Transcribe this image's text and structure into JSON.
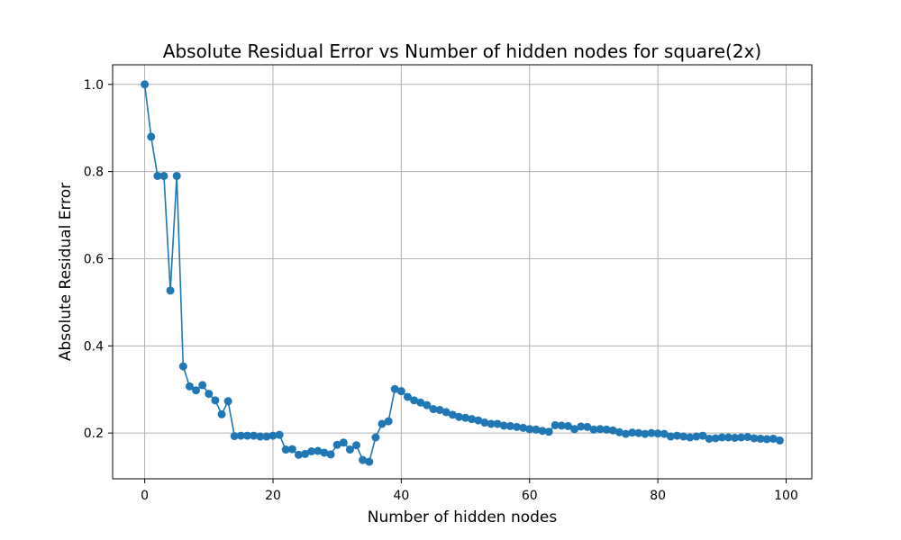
{
  "chart_data": {
    "type": "line",
    "title": "Absolute Residual Error vs Number of hidden nodes for square(2x)",
    "xlabel": "Number of hidden nodes",
    "ylabel": "Absolute Residual Error",
    "xlim": [
      -5,
      104
    ],
    "ylim": [
      0.095,
      1.045
    ],
    "xticks": [
      0,
      20,
      40,
      60,
      80,
      100
    ],
    "xtick_labels": [
      "0",
      "20",
      "40",
      "60",
      "80",
      "100"
    ],
    "yticks": [
      0.2,
      0.4,
      0.6,
      0.8,
      1.0
    ],
    "ytick_labels": [
      "0.2",
      "0.4",
      "0.6",
      "0.8",
      "1.0"
    ],
    "grid": true,
    "series": [
      {
        "color": "#1f77b4",
        "marker": "circle",
        "x": [
          0,
          1,
          2,
          3,
          4,
          5,
          6,
          7,
          8,
          9,
          10,
          11,
          12,
          13,
          14,
          15,
          16,
          17,
          18,
          19,
          20,
          21,
          22,
          23,
          24,
          25,
          26,
          27,
          28,
          29,
          30,
          31,
          32,
          33,
          34,
          35,
          36,
          37,
          38,
          39,
          40,
          41,
          42,
          43,
          44,
          45,
          46,
          47,
          48,
          49,
          50,
          51,
          52,
          53,
          54,
          55,
          56,
          57,
          58,
          59,
          60,
          61,
          62,
          63,
          64,
          65,
          66,
          67,
          68,
          69,
          70,
          71,
          72,
          73,
          74,
          75,
          76,
          77,
          78,
          79,
          80,
          81,
          82,
          83,
          84,
          85,
          86,
          87,
          88,
          89,
          90,
          91,
          92,
          93,
          94,
          95,
          96,
          97,
          98,
          99
        ],
        "y": [
          1.0,
          0.88,
          0.79,
          0.79,
          0.527,
          0.79,
          0.353,
          0.307,
          0.298,
          0.31,
          0.29,
          0.275,
          0.243,
          0.273,
          0.193,
          0.194,
          0.194,
          0.194,
          0.192,
          0.192,
          0.194,
          0.196,
          0.162,
          0.163,
          0.15,
          0.152,
          0.158,
          0.159,
          0.155,
          0.151,
          0.173,
          0.178,
          0.162,
          0.172,
          0.138,
          0.134,
          0.19,
          0.221,
          0.227,
          0.301,
          0.296,
          0.283,
          0.275,
          0.27,
          0.264,
          0.255,
          0.253,
          0.248,
          0.242,
          0.237,
          0.235,
          0.232,
          0.229,
          0.224,
          0.221,
          0.221,
          0.217,
          0.216,
          0.214,
          0.212,
          0.209,
          0.208,
          0.205,
          0.203,
          0.218,
          0.217,
          0.216,
          0.209,
          0.215,
          0.214,
          0.208,
          0.209,
          0.208,
          0.206,
          0.202,
          0.198,
          0.201,
          0.2,
          0.198,
          0.2,
          0.199,
          0.198,
          0.192,
          0.194,
          0.192,
          0.19,
          0.192,
          0.194,
          0.187,
          0.188,
          0.19,
          0.19,
          0.189,
          0.19,
          0.191,
          0.188,
          0.187,
          0.186,
          0.187,
          0.183
        ]
      }
    ]
  }
}
